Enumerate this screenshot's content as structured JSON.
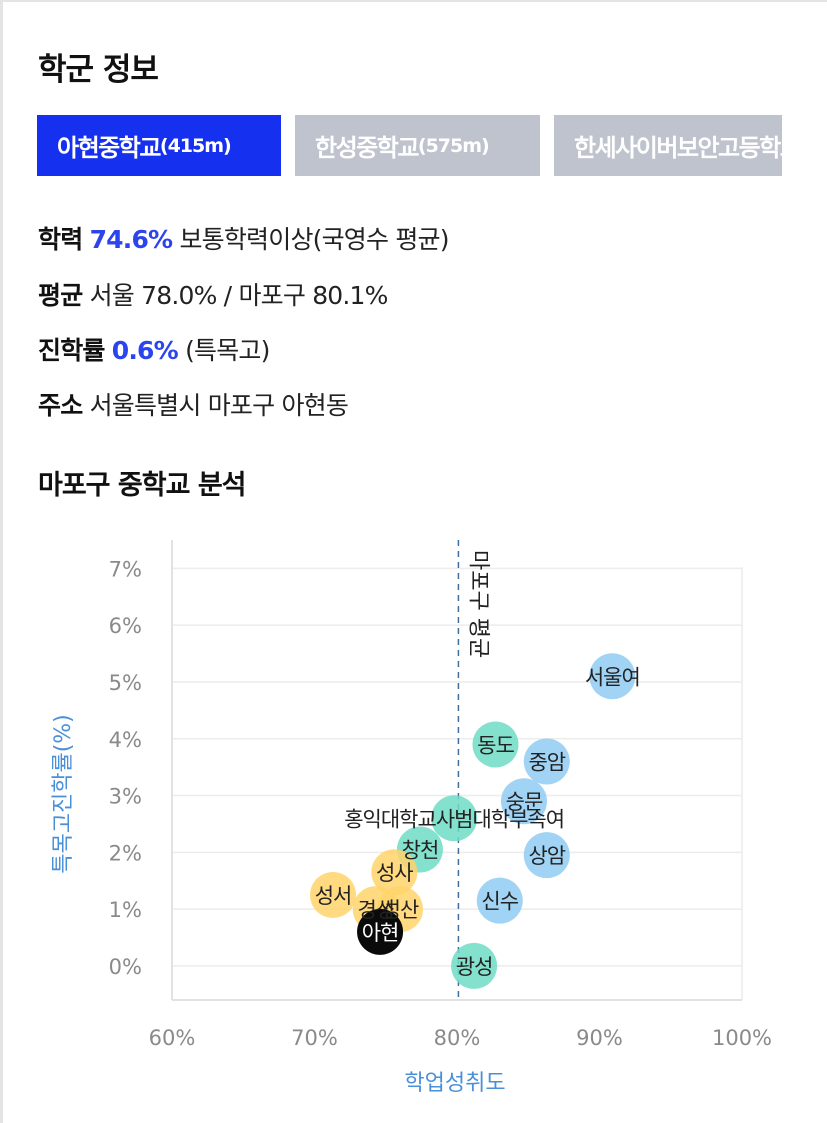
{
  "title": "학군 정보",
  "tabs": [
    {
      "name": "아현중학교",
      "distance": "(415m)",
      "active": true
    },
    {
      "name": "한성중학교",
      "distance": "(575m)",
      "active": false
    },
    {
      "name": "한세사이버보안고등학교",
      "distance": "",
      "active": false
    }
  ],
  "info": {
    "academic_key": "학력",
    "academic_value": "74.6%",
    "academic_desc": "보통학력이상(국영수 평균)",
    "average_key": "평균",
    "average_value": "서울 78.0% / 마포구 80.1%",
    "advance_key": "진학률",
    "advance_value": "0.6%",
    "advance_desc": "(특목고)",
    "address_key": "주소",
    "address_value": "서울특별시 마포구 아현동"
  },
  "section_title": "마포구 중학교 분석",
  "chart_data": {
    "type": "scatter",
    "xlabel": "학업성취도",
    "ylabel": "특목고진학률(%)",
    "xlim": [
      60,
      100
    ],
    "ylim": [
      -0.6,
      7.5
    ],
    "xticks": [
      "60%",
      "70%",
      "80%",
      "90%",
      "100%"
    ],
    "yticks": [
      "0%",
      "1%",
      "2%",
      "3%",
      "4%",
      "5%",
      "6%",
      "7%"
    ],
    "grid": true,
    "reference_line": {
      "x": 80.1,
      "label": "마포구 평균"
    },
    "colors": {
      "teal": "#6fdcc6",
      "blue": "#8fcbf2",
      "yellow": "#ffd36a",
      "black": "#0a0a0a",
      "axis": "#4a90d9"
    },
    "points": [
      {
        "label": "서울여",
        "x": 90.9,
        "y": 5.1,
        "color": "blue"
      },
      {
        "label": "동도",
        "x": 82.7,
        "y": 3.9,
        "color": "teal"
      },
      {
        "label": "중암",
        "x": 86.3,
        "y": 3.6,
        "color": "blue"
      },
      {
        "label": "숭문",
        "x": 84.7,
        "y": 2.9,
        "color": "blue"
      },
      {
        "label": "홍익대학교사범대학부속여",
        "x": 79.8,
        "y": 2.6,
        "color": "teal"
      },
      {
        "label": "창천",
        "x": 77.4,
        "y": 2.05,
        "color": "teal"
      },
      {
        "label": "상암",
        "x": 86.3,
        "y": 1.95,
        "color": "blue"
      },
      {
        "label": "성사",
        "x": 75.6,
        "y": 1.65,
        "color": "yellow"
      },
      {
        "label": "성서",
        "x": 71.3,
        "y": 1.25,
        "color": "yellow"
      },
      {
        "label": "신수",
        "x": 83.0,
        "y": 1.15,
        "color": "blue"
      },
      {
        "label": "경성",
        "x": 74.3,
        "y": 1.0,
        "color": "yellow"
      },
      {
        "label": "성산",
        "x": 76.0,
        "y": 1.0,
        "color": "yellow"
      },
      {
        "label": "아현",
        "x": 74.6,
        "y": 0.6,
        "color": "black"
      },
      {
        "label": "광성",
        "x": 81.2,
        "y": 0.0,
        "color": "teal"
      }
    ]
  }
}
